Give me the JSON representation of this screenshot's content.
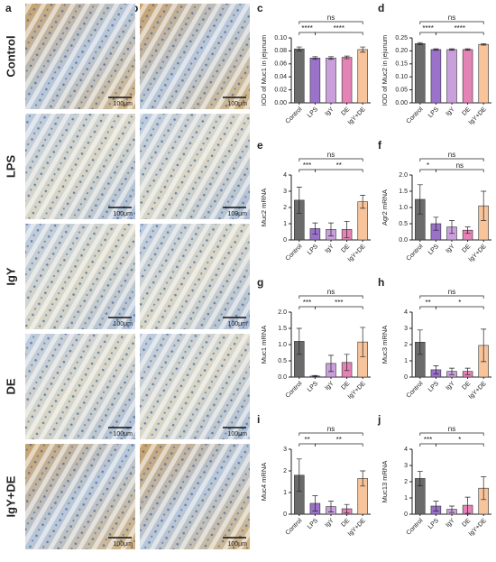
{
  "images": {
    "columns": [
      "a",
      "b"
    ],
    "rows": [
      "Control",
      "LPS",
      "IgY",
      "DE",
      "IgY+DE"
    ],
    "scale_bar": "100μm"
  },
  "chart_data": [
    {
      "type": "bar",
      "panel": "c",
      "y_label": "IOD of Muc1 in jejunum",
      "categories": [
        "Control",
        "LPS",
        "IgY",
        "DE",
        "IgY+DE"
      ],
      "values": [
        0.083,
        0.069,
        0.069,
        0.07,
        0.082
      ],
      "errors": [
        0.003,
        0.002,
        0.002,
        0.002,
        0.004
      ],
      "colors": [
        "#6b6b6b",
        "#9b72c9",
        "#c9a0dc",
        "#e483b6",
        "#f7c49c"
      ],
      "ylim": [
        0,
        0.1
      ],
      "yticks": [
        {
          "value": 0,
          "label": "0.00"
        },
        0.02,
        0.04,
        0.06,
        0.08,
        {
          "value": 0.1,
          "label": "0.10"
        }
      ],
      "significance": [
        "****",
        "****",
        "ns"
      ]
    },
    {
      "type": "bar",
      "panel": "d",
      "y_label": "IOD of Muc2 in jejunum",
      "categories": [
        "Control",
        "LPS",
        "IgY",
        "DE",
        "IgY+DE"
      ],
      "values": [
        0.228,
        0.205,
        0.205,
        0.205,
        0.225
      ],
      "errors": [
        0.004,
        0.003,
        0.003,
        0.003,
        0.003
      ],
      "colors": [
        "#6b6b6b",
        "#9b72c9",
        "#c9a0dc",
        "#e483b6",
        "#f7c49c"
      ],
      "ylim": [
        0,
        0.25
      ],
      "yticks": [
        {
          "value": 0,
          "label": "0.00"
        },
        0.05,
        {
          "value": 0.1,
          "label": "0.10"
        },
        0.15,
        {
          "value": 0.2,
          "label": "0.20"
        },
        0.25
      ],
      "significance": [
        "****",
        "****",
        "ns"
      ]
    },
    {
      "type": "bar",
      "panel": "e",
      "y_label": "Muc2 mRNA",
      "categories": [
        "Control",
        "LPS",
        "IgY",
        "DE",
        "IgY+DE"
      ],
      "values": [
        2.45,
        0.7,
        0.65,
        0.65,
        2.35
      ],
      "errors": [
        0.8,
        0.35,
        0.4,
        0.5,
        0.4
      ],
      "colors": [
        "#6b6b6b",
        "#9b72c9",
        "#c9a0dc",
        "#e483b6",
        "#f7c49c"
      ],
      "ylim": [
        0,
        4
      ],
      "yticks": [
        0,
        1,
        2,
        3,
        4
      ],
      "significance": [
        "***",
        "**",
        "ns"
      ]
    },
    {
      "type": "bar",
      "panel": "f",
      "y_label": "Agr2 mRNA",
      "categories": [
        "Control",
        "LPS",
        "IgY",
        "DE",
        "IgY+DE"
      ],
      "values": [
        1.25,
        0.5,
        0.4,
        0.3,
        1.05
      ],
      "errors": [
        0.45,
        0.2,
        0.2,
        0.1,
        0.45
      ],
      "colors": [
        "#6b6b6b",
        "#9b72c9",
        "#c9a0dc",
        "#e483b6",
        "#f7c49c"
      ],
      "ylim": [
        0,
        2
      ],
      "yticks": [
        {
          "value": 0,
          "label": "0.0"
        },
        0.5,
        {
          "value": 1,
          "label": "1.0"
        },
        1.5,
        {
          "value": 2,
          "label": "2.0"
        }
      ],
      "significance": [
        "*",
        "ns",
        "ns"
      ]
    },
    {
      "type": "bar",
      "panel": "g",
      "y_label": "Muc1 mRNA",
      "categories": [
        "Control",
        "LPS",
        "IgY",
        "DE",
        "IgY+DE"
      ],
      "values": [
        1.1,
        0.03,
        0.42,
        0.45,
        1.08
      ],
      "errors": [
        0.4,
        0.02,
        0.25,
        0.25,
        0.45
      ],
      "colors": [
        "#6b6b6b",
        "#9b72c9",
        "#c9a0dc",
        "#e483b6",
        "#f7c49c"
      ],
      "ylim": [
        0,
        2
      ],
      "yticks": [
        {
          "value": 0,
          "label": "0.0"
        },
        0.5,
        {
          "value": 1,
          "label": "1.0"
        },
        1.5,
        {
          "value": 2,
          "label": "2.0"
        }
      ],
      "significance": [
        "***",
        "***",
        "ns"
      ]
    },
    {
      "type": "bar",
      "panel": "h",
      "y_label": "Muc3 mRNA",
      "categories": [
        "Control",
        "LPS",
        "IgY",
        "DE",
        "IgY+DE"
      ],
      "values": [
        2.15,
        0.45,
        0.35,
        0.35,
        1.95
      ],
      "errors": [
        0.75,
        0.25,
        0.2,
        0.2,
        1.0
      ],
      "colors": [
        "#6b6b6b",
        "#9b72c9",
        "#c9a0dc",
        "#e483b6",
        "#f7c49c"
      ],
      "ylim": [
        0,
        4
      ],
      "yticks": [
        0,
        1,
        2,
        3,
        4
      ],
      "significance": [
        "**",
        "*",
        "ns"
      ]
    },
    {
      "type": "bar",
      "panel": "i",
      "y_label": "Muc4 mRNA",
      "categories": [
        "Control",
        "LPS",
        "IgY",
        "DE",
        "IgY+DE"
      ],
      "values": [
        1.8,
        0.5,
        0.35,
        0.25,
        1.65
      ],
      "errors": [
        0.75,
        0.35,
        0.25,
        0.2,
        0.35
      ],
      "colors": [
        "#6b6b6b",
        "#9b72c9",
        "#c9a0dc",
        "#e483b6",
        "#f7c49c"
      ],
      "ylim": [
        0,
        3
      ],
      "yticks": [
        0,
        1,
        2,
        3
      ],
      "significance": [
        "**",
        "**",
        "ns"
      ]
    },
    {
      "type": "bar",
      "panel": "j",
      "y_label": "Muc13 mRNA",
      "categories": [
        "Control",
        "LPS",
        "IgY",
        "DE",
        "IgY+DE"
      ],
      "values": [
        2.2,
        0.5,
        0.3,
        0.55,
        1.6
      ],
      "errors": [
        0.45,
        0.3,
        0.2,
        0.5,
        0.7
      ],
      "colors": [
        "#6b6b6b",
        "#9b72c9",
        "#c9a0dc",
        "#e483b6",
        "#f7c49c"
      ],
      "ylim": [
        0,
        4
      ],
      "yticks": [
        0,
        1,
        2,
        3,
        4
      ],
      "significance": [
        "***",
        "*",
        "ns"
      ]
    }
  ]
}
